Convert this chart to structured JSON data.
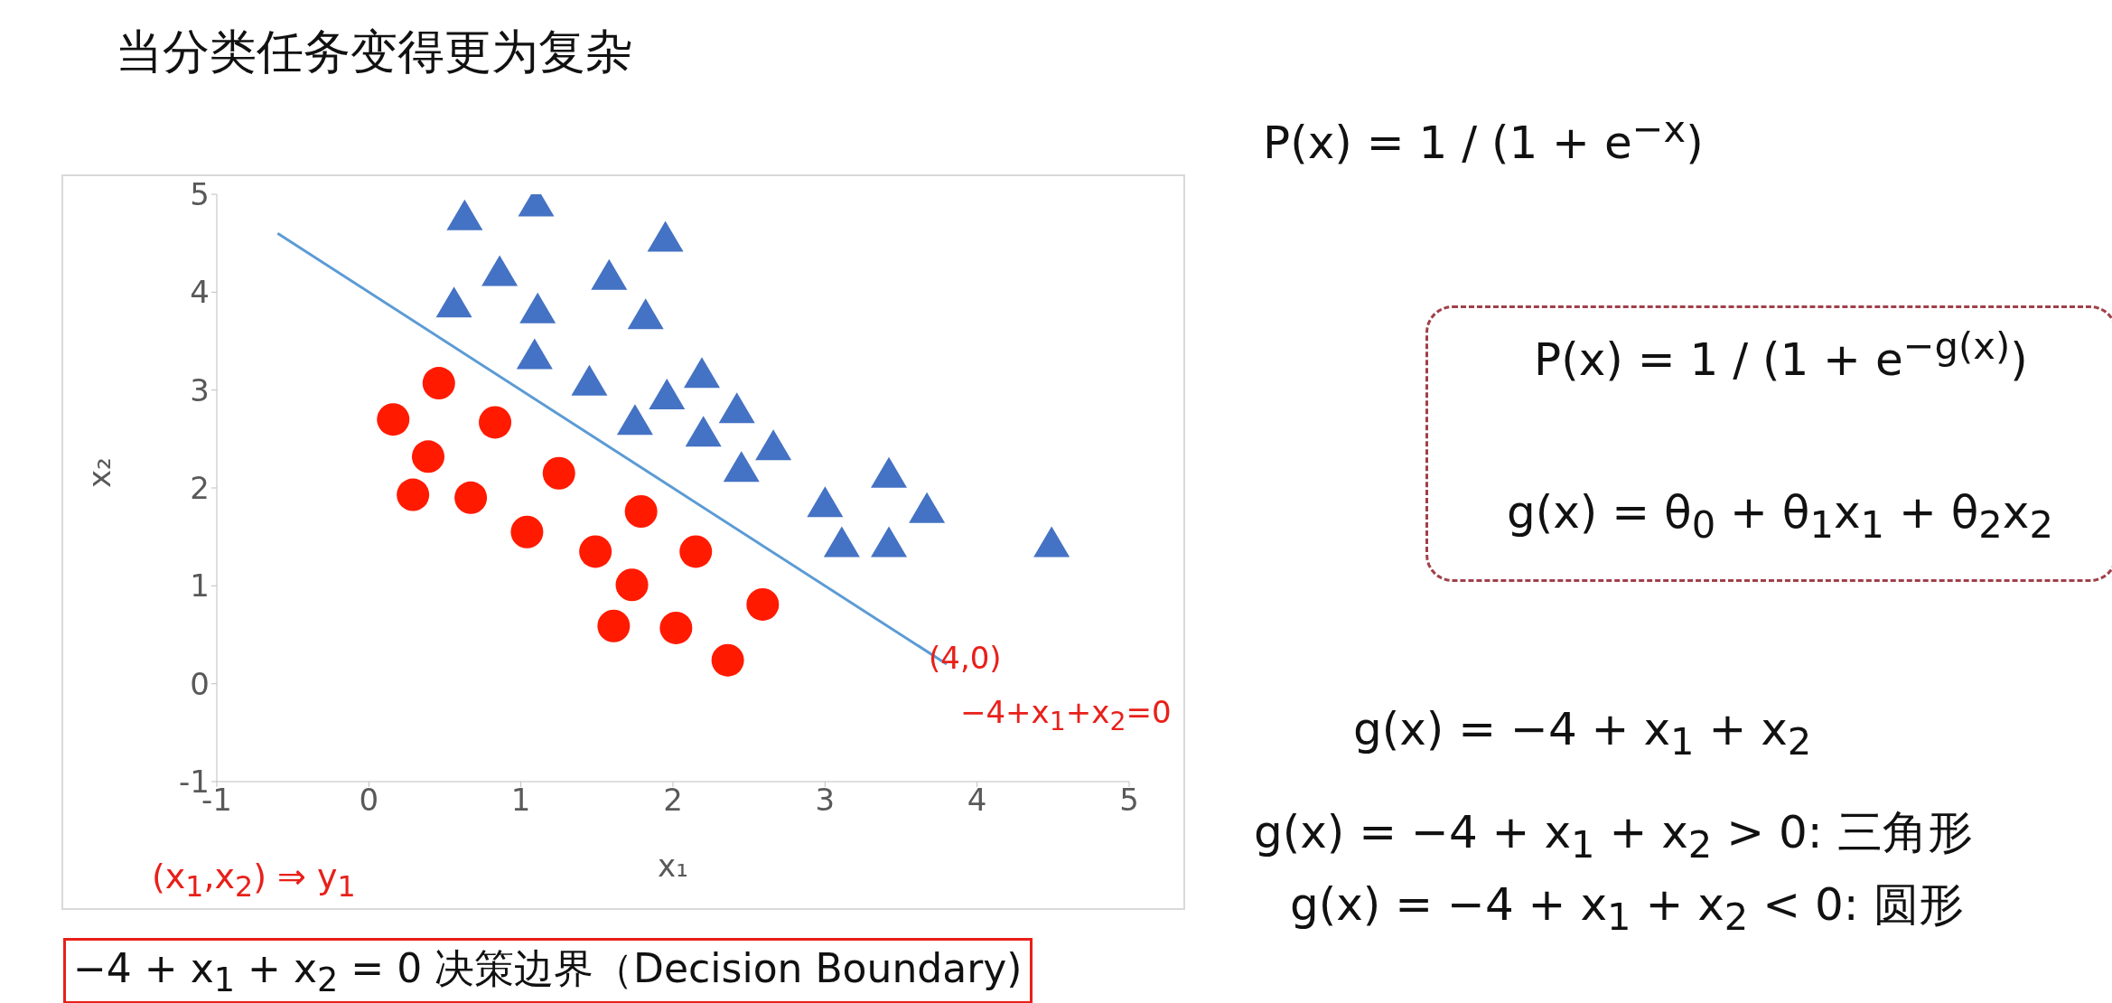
{
  "chart_data": {
    "type": "scatter",
    "title": "当分类任务变得更为复杂",
    "xlabel": "x₁",
    "ylabel": "x₂",
    "xlim": [
      -1,
      5
    ],
    "ylim": [
      -1,
      5
    ],
    "xticks": [
      -1,
      0,
      1,
      2,
      3,
      4,
      5
    ],
    "yticks": [
      -1,
      0,
      1,
      2,
      3,
      4,
      5
    ],
    "grid": false,
    "legend": false,
    "series": [
      {
        "marker": "triangle",
        "color": "#4472c4",
        "x": [
          0.63,
          1.1,
          1.95,
          0.86,
          0.56,
          1.11,
          1.58,
          1.82,
          1.09,
          1.45,
          1.96,
          2.19,
          1.75,
          2.2,
          2.42,
          2.45,
          2.66,
          3.0,
          3.42,
          3.67,
          3.11,
          3.42,
          4.49
        ],
        "values": [
          4.79,
          4.93,
          4.57,
          4.22,
          3.9,
          3.84,
          4.18,
          3.78,
          3.37,
          3.1,
          2.96,
          3.18,
          2.7,
          2.58,
          2.82,
          2.22,
          2.44,
          1.86,
          2.16,
          1.8,
          1.45,
          1.45,
          1.45
        ]
      },
      {
        "marker": "circle",
        "color": "#ff1a00",
        "x": [
          0.16,
          0.46,
          0.39,
          0.29,
          0.83,
          0.67,
          1.25,
          1.04,
          1.49,
          1.79,
          1.73,
          1.61,
          2.02,
          2.15,
          2.59,
          2.36
        ],
        "values": [
          2.7,
          3.07,
          2.32,
          1.93,
          2.67,
          1.9,
          2.15,
          1.55,
          1.35,
          1.76,
          1.01,
          0.59,
          0.57,
          1.35,
          0.81,
          0.24
        ]
      },
      {
        "type": "line",
        "marker": "none",
        "color": "#5b9bd5",
        "x": [
          -0.6,
          3.8
        ],
        "values": [
          4.6,
          0.2
        ]
      }
    ],
    "annotations": [
      "P(x) = 1 / (1 + e$^{−x}$)",
      "P(x) = 1 / (1 + e$^{−g(x)}$)",
      "g(x) = θ$_{0}$ + θ$_{1}$x$_{1}$ + θ$_{2}$x$_{2}$",
      "g(x) = −4 + x$_{1}$ + x$_{2}$",
      "g(x) = −4 + x$_{1}$ + x$_{2}$ > 0: 三角形",
      "g(x) = −4 + x$_{1}$ + x$_{2}$ < 0: 圆形",
      "−4 + x$_{1}$ + x$_{2}$ = 0  决策边界（Decision Boundary)",
      "(4,0)",
      "−4+x$_{1}$+x$_{2}$=0",
      "(x$_{1}$,x$_{2}$) ⇒ y$_{1}$"
    ]
  }
}
